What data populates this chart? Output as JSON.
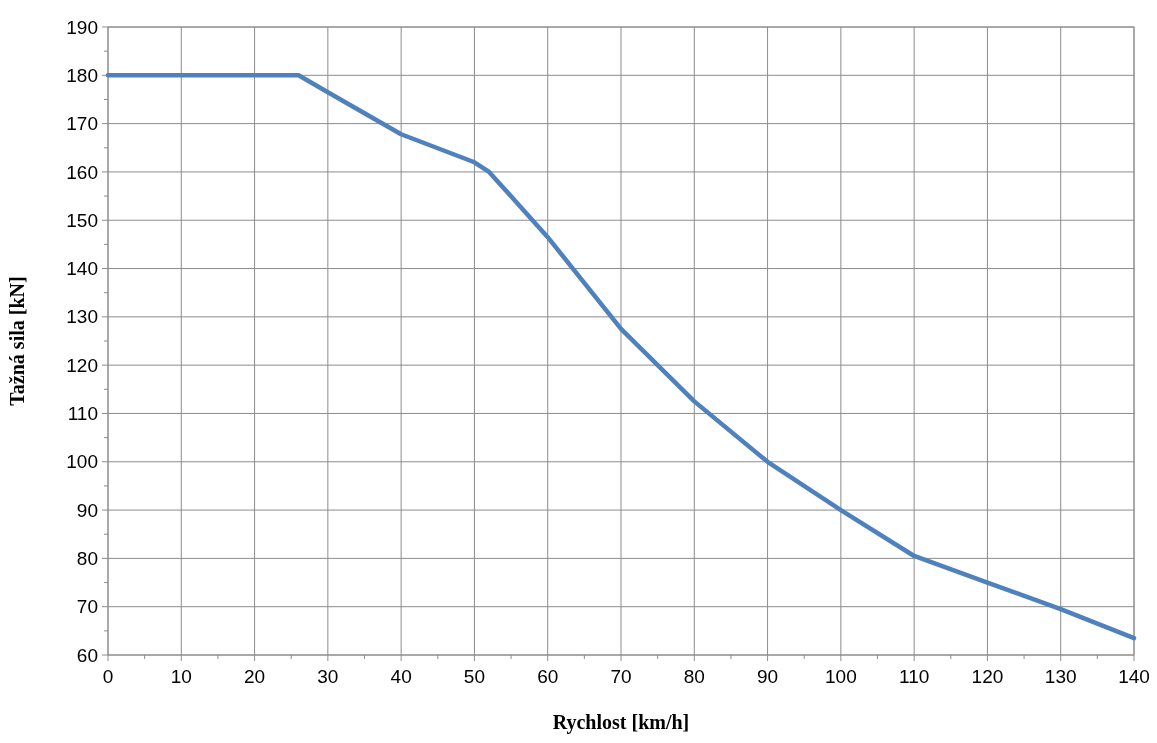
{
  "chart_data": {
    "type": "line",
    "xlabel": "Rychlost [km/h]",
    "ylabel": "Tažná sila [kN]",
    "x": [
      0,
      26,
      30,
      40,
      50,
      52,
      60,
      70,
      80,
      90,
      100,
      110,
      120,
      130,
      140
    ],
    "series": [
      {
        "color": "#4f81bd",
        "values": [
          180,
          180,
          176.5,
          167.8,
          162,
          160,
          146.5,
          127.5,
          112.5,
          100,
          90,
          80.5,
          75,
          69.5,
          63.5
        ]
      }
    ],
    "xlim": [
      0,
      140
    ],
    "xticks": [
      0,
      {
        "value": 5,
        "label": null
      },
      10,
      {
        "value": 15,
        "label": null
      },
      20,
      {
        "value": 25,
        "label": null
      },
      30,
      {
        "value": 35,
        "label": null
      },
      40,
      {
        "value": 45,
        "label": null
      },
      50,
      {
        "value": 55,
        "label": null
      },
      60,
      {
        "value": 65,
        "label": null
      },
      70,
      {
        "value": 75,
        "label": null
      },
      80,
      {
        "value": 85,
        "label": null
      },
      90,
      {
        "value": 95,
        "label": null
      },
      100,
      {
        "value": 105,
        "label": null
      },
      110,
      {
        "value": 115,
        "label": null
      },
      120,
      {
        "value": 125,
        "label": null
      },
      130,
      {
        "value": 135,
        "label": null
      },
      140
    ],
    "ylim": [
      60,
      190
    ],
    "yticks": [
      60,
      {
        "value": 65,
        "label": null
      },
      70,
      {
        "value": 75,
        "label": null
      },
      80,
      {
        "value": 85,
        "label": null
      },
      90,
      {
        "value": 95,
        "label": null
      },
      100,
      {
        "value": 105,
        "label": null
      },
      110,
      {
        "value": 115,
        "label": null
      },
      120,
      {
        "value": 125,
        "label": null
      },
      130,
      {
        "value": 135,
        "label": null
      },
      140,
      {
        "value": 145,
        "label": null
      },
      150,
      {
        "value": 155,
        "label": null
      },
      160,
      {
        "value": 165,
        "label": null
      },
      170,
      {
        "value": 175,
        "label": null
      },
      180,
      {
        "value": 185,
        "label": null
      },
      190
    ],
    "grid": true,
    "marker": "none",
    "line_style": "solid"
  }
}
